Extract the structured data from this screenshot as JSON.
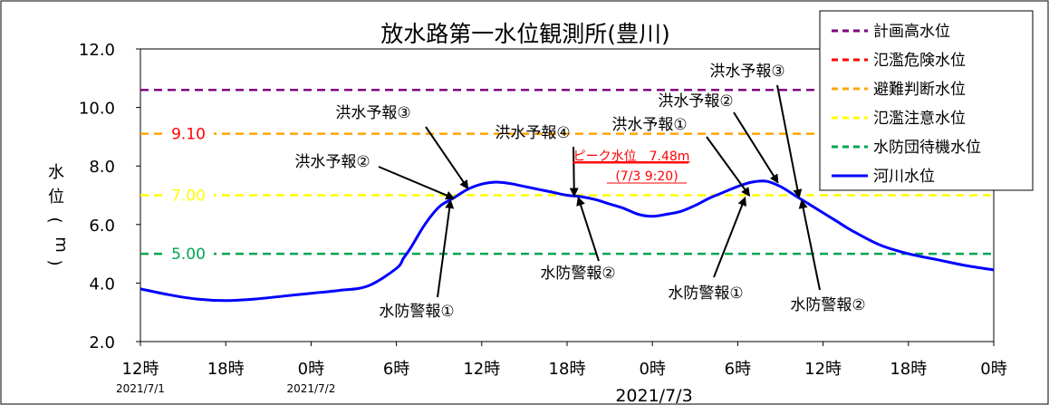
{
  "chart_data": {
    "type": "line",
    "title": "放水路第一水位観測所(豊川)",
    "ylabel": "水位(m)",
    "xlabel": "2021/7/3",
    "ylim": [
      2.0,
      12.0
    ],
    "yticks": [
      "2.0",
      "4.0",
      "6.0",
      "8.0",
      "10.0",
      "12.0"
    ],
    "xticks": [
      "12時",
      "18時",
      "0時",
      "6時",
      "12時",
      "18時",
      "0時",
      "6時",
      "12時",
      "18時",
      "0時"
    ],
    "date_labels": [
      "2021/7/1",
      "2021/7/2"
    ],
    "thresholds": [
      {
        "name": "計画高水位",
        "value": 10.6,
        "color": "#800080",
        "label": ""
      },
      {
        "name": "氾濫危険水位",
        "value": 9.1,
        "color": "#ff0000",
        "label": ""
      },
      {
        "name": "避難判断水位",
        "value": 9.1,
        "color": "#ffa500",
        "label": "9.10",
        "label_color": "#ff0000"
      },
      {
        "name": "氾濫注意水位",
        "value": 7.0,
        "color": "#ffff00",
        "label": "7.00",
        "label_color": "#ffff00"
      },
      {
        "name": "水防団待機水位",
        "value": 5.0,
        "color": "#00a550",
        "label": "5.00",
        "label_color": "#00a550"
      }
    ],
    "series": [
      {
        "name": "河川水位",
        "color": "#0000ff",
        "x": [
          0,
          2,
          4,
          6,
          8,
          10,
          12,
          14,
          16,
          18,
          18.5,
          19,
          20,
          21,
          22,
          23,
          24,
          25,
          26,
          27,
          28,
          29,
          30,
          31,
          32,
          33,
          34,
          35,
          36,
          37,
          38,
          39,
          40,
          41,
          42,
          43,
          44,
          45,
          46,
          47,
          48,
          49,
          50,
          52,
          54,
          56,
          58,
          60
        ],
        "values": [
          3.8,
          3.6,
          3.45,
          3.4,
          3.45,
          3.55,
          3.65,
          3.75,
          3.9,
          4.5,
          4.85,
          5.2,
          6.0,
          6.6,
          6.9,
          7.2,
          7.38,
          7.45,
          7.4,
          7.3,
          7.2,
          7.1,
          7.0,
          6.95,
          6.85,
          6.7,
          6.55,
          6.35,
          6.28,
          6.35,
          6.45,
          6.65,
          6.9,
          7.1,
          7.3,
          7.45,
          7.48,
          7.3,
          7.0,
          6.7,
          6.4,
          6.1,
          5.8,
          5.3,
          5.0,
          4.8,
          4.6,
          4.45
        ]
      }
    ],
    "peak": {
      "line1": "ピーク水位　7.48m",
      "line2": "(7/3 9:20)"
    },
    "annotations": [
      {
        "text": "洪水予報②",
        "x": 22,
        "y": 6.9
      },
      {
        "text": "洪水予報③",
        "x": 23,
        "y": 7.25
      },
      {
        "text": "洪水予報④",
        "x": 30.5,
        "y": 7.0
      },
      {
        "text": "洪水予報①",
        "x": 42.8,
        "y": 7.0
      },
      {
        "text": "洪水予報②",
        "x": 44.8,
        "y": 7.45
      },
      {
        "text": "洪水予報③",
        "x": 46.3,
        "y": 6.95
      },
      {
        "text": "水防警報①",
        "x": 21.8,
        "y": 6.8
      },
      {
        "text": "水防警報②",
        "x": 30.8,
        "y": 6.9
      },
      {
        "text": "水防警報①",
        "x": 42.5,
        "y": 6.9
      },
      {
        "text": "水防警報②",
        "x": 46.5,
        "y": 6.8
      }
    ],
    "legend": [
      {
        "label": "計画高水位",
        "color": "#800080",
        "style": "dashed"
      },
      {
        "label": "氾濫危険水位",
        "color": "#ff0000",
        "style": "dashed"
      },
      {
        "label": "避難判断水位",
        "color": "#ffa500",
        "style": "dashed"
      },
      {
        "label": "氾濫注意水位",
        "color": "#ffff00",
        "style": "dashed"
      },
      {
        "label": "水防団待機水位",
        "color": "#00a550",
        "style": "dashed"
      },
      {
        "label": "河川水位",
        "color": "#0000ff",
        "style": "solid"
      }
    ],
    "legend_position": "top-right",
    "grid": false
  }
}
